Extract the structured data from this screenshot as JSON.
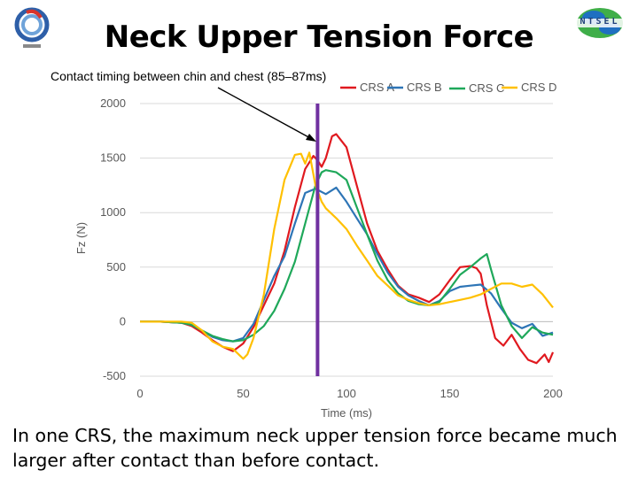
{
  "title": "Neck Upper Tension Force",
  "annotation": "Contact timing between chin and chest (85–87ms)",
  "caption": "In one CRS, the maximum neck upper tension force became much larger after contact than before contact.",
  "logo_right_text": "NTSEL",
  "chart_data": {
    "type": "line",
    "xlabel": "Time (ms)",
    "ylabel": "Fz (N)",
    "xlim": [
      0,
      200
    ],
    "ylim": [
      -500,
      2000
    ],
    "xticks": [
      0,
      50,
      100,
      150,
      200
    ],
    "yticks": [
      -500,
      0,
      500,
      1000,
      1500,
      2000
    ],
    "legend_position": "top",
    "contact_line_x": 86,
    "contact_line_color": "#7030a0",
    "series": [
      {
        "name": "CRS A",
        "color": "#e0191f",
        "x": [
          0,
          10,
          20,
          25,
          30,
          35,
          40,
          45,
          50,
          55,
          60,
          65,
          70,
          75,
          80,
          84,
          86,
          88,
          90,
          93,
          95,
          100,
          105,
          110,
          115,
          120,
          125,
          130,
          135,
          140,
          145,
          150,
          155,
          160,
          163,
          165,
          168,
          172,
          176,
          180,
          184,
          188,
          192,
          196,
          198,
          200
        ],
        "y": [
          0,
          0,
          -10,
          -40,
          -100,
          -170,
          -230,
          -270,
          -200,
          -50,
          150,
          350,
          650,
          1050,
          1400,
          1520,
          1480,
          1420,
          1500,
          1700,
          1720,
          1600,
          1250,
          900,
          650,
          480,
          330,
          250,
          220,
          180,
          250,
          380,
          500,
          510,
          490,
          440,
          150,
          -150,
          -220,
          -120,
          -250,
          -350,
          -380,
          -300,
          -370,
          -280
        ]
      },
      {
        "name": "CRS B",
        "color": "#2e75b6",
        "x": [
          0,
          10,
          20,
          25,
          30,
          35,
          40,
          45,
          50,
          55,
          60,
          65,
          70,
          75,
          80,
          85,
          90,
          95,
          100,
          105,
          110,
          115,
          120,
          125,
          130,
          135,
          140,
          145,
          150,
          155,
          160,
          165,
          170,
          175,
          180,
          185,
          190,
          195,
          200
        ],
        "y": [
          0,
          0,
          -10,
          -30,
          -80,
          -140,
          -170,
          -180,
          -150,
          -20,
          200,
          420,
          600,
          900,
          1180,
          1220,
          1170,
          1230,
          1100,
          950,
          800,
          620,
          450,
          320,
          240,
          190,
          150,
          190,
          280,
          320,
          330,
          340,
          260,
          120,
          -10,
          -60,
          -20,
          -130,
          -100
        ]
      },
      {
        "name": "CRS C",
        "color": "#1fa85a",
        "x": [
          0,
          10,
          20,
          25,
          30,
          35,
          40,
          45,
          50,
          55,
          60,
          65,
          70,
          75,
          80,
          85,
          88,
          90,
          95,
          100,
          105,
          110,
          115,
          120,
          125,
          130,
          135,
          140,
          145,
          150,
          155,
          160,
          165,
          168,
          170,
          175,
          180,
          185,
          190,
          195,
          200
        ],
        "y": [
          0,
          0,
          -10,
          -30,
          -80,
          -130,
          -160,
          -180,
          -170,
          -120,
          -40,
          100,
          300,
          550,
          900,
          1250,
          1370,
          1390,
          1370,
          1300,
          1050,
          800,
          560,
          380,
          260,
          190,
          160,
          150,
          180,
          300,
          430,
          500,
          580,
          620,
          480,
          150,
          -40,
          -150,
          -50,
          -100,
          -120
        ]
      },
      {
        "name": "CRS D",
        "color": "#ffc000",
        "x": [
          0,
          10,
          20,
          25,
          30,
          35,
          40,
          45,
          50,
          52,
          55,
          60,
          65,
          70,
          75,
          78,
          80,
          82,
          85,
          88,
          90,
          95,
          100,
          105,
          110,
          115,
          120,
          125,
          130,
          135,
          140,
          145,
          150,
          155,
          160,
          165,
          170,
          175,
          180,
          185,
          190,
          195,
          200
        ],
        "y": [
          0,
          0,
          0,
          -10,
          -80,
          -180,
          -230,
          -250,
          -340,
          -300,
          -150,
          250,
          850,
          1300,
          1530,
          1540,
          1450,
          1550,
          1250,
          1100,
          1040,
          950,
          850,
          700,
          560,
          420,
          330,
          240,
          200,
          170,
          150,
          160,
          180,
          200,
          220,
          250,
          300,
          350,
          350,
          320,
          340,
          250,
          130
        ]
      }
    ]
  }
}
